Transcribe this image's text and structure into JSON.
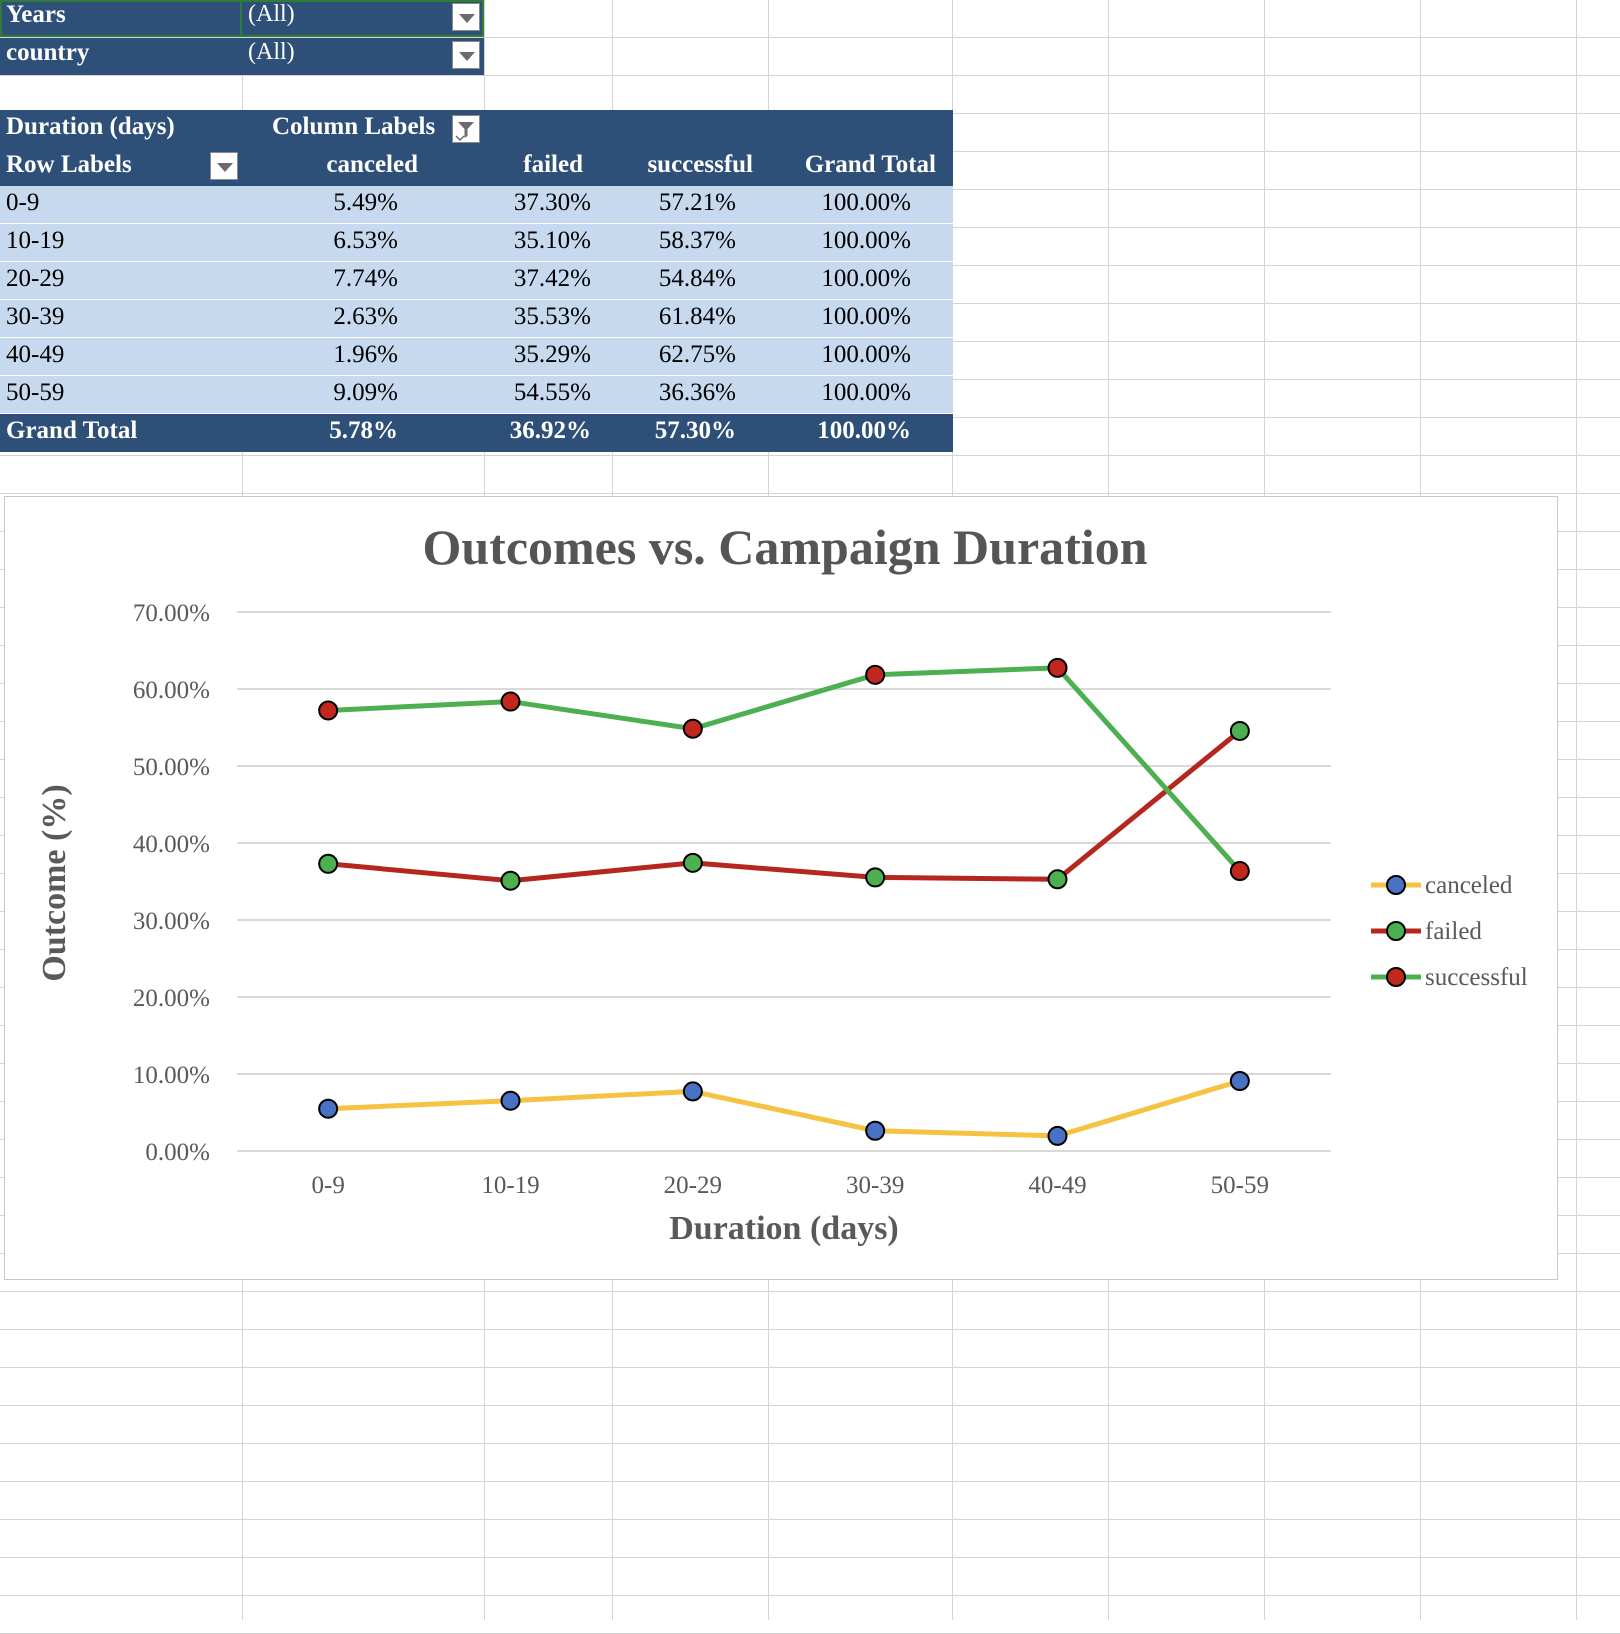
{
  "filters": [
    {
      "field": "Years",
      "value": "(All)"
    },
    {
      "field": "country",
      "value": "(All)"
    }
  ],
  "pivot": {
    "values_label": "Duration (days)",
    "column_labels": "Column Labels",
    "row_labels": "Row Labels",
    "columns": [
      "canceled",
      "failed",
      "successful",
      "Grand Total"
    ],
    "rows": [
      {
        "label": "0-9",
        "values": [
          "5.49%",
          "37.30%",
          "57.21%",
          "100.00%"
        ]
      },
      {
        "label": "10-19",
        "values": [
          "6.53%",
          "35.10%",
          "58.37%",
          "100.00%"
        ]
      },
      {
        "label": "20-29",
        "values": [
          "7.74%",
          "37.42%",
          "54.84%",
          "100.00%"
        ]
      },
      {
        "label": "30-39",
        "values": [
          "2.63%",
          "35.53%",
          "61.84%",
          "100.00%"
        ]
      },
      {
        "label": "40-49",
        "values": [
          "1.96%",
          "35.29%",
          "62.75%",
          "100.00%"
        ]
      },
      {
        "label": "50-59",
        "values": [
          "9.09%",
          "54.55%",
          "36.36%",
          "100.00%"
        ]
      }
    ],
    "total": {
      "label": "Grand Total",
      "values": [
        "5.78%",
        "36.92%",
        "57.30%",
        "100.00%"
      ]
    }
  },
  "chart_data": {
    "type": "line",
    "title": "Outcomes vs. Campaign Duration",
    "xlabel": "Duration (days)",
    "ylabel": "Outcome (%)",
    "categories": [
      "0-9",
      "10-19",
      "20-29",
      "30-39",
      "40-49",
      "50-59"
    ],
    "ylim": [
      0,
      70
    ],
    "yticks": [
      0,
      10,
      20,
      30,
      40,
      50,
      60,
      70
    ],
    "ytick_labels": [
      "0.00%",
      "10.00%",
      "20.00%",
      "30.00%",
      "40.00%",
      "50.00%",
      "60.00%",
      "70.00%"
    ],
    "grid": true,
    "legend_position": "right",
    "series": [
      {
        "name": "canceled",
        "values": [
          5.49,
          6.53,
          7.74,
          2.63,
          1.96,
          9.09
        ],
        "line_color": "#f5c242",
        "marker_color": "#4a72c4"
      },
      {
        "name": "failed",
        "values": [
          37.3,
          35.1,
          37.42,
          35.53,
          35.29,
          54.55
        ],
        "line_color": "#b5271e",
        "marker_color": "#4caf50"
      },
      {
        "name": "successful",
        "values": [
          57.21,
          58.37,
          54.84,
          61.84,
          62.75,
          36.36
        ],
        "line_color": "#4caf50",
        "marker_color": "#c0281e"
      }
    ]
  }
}
